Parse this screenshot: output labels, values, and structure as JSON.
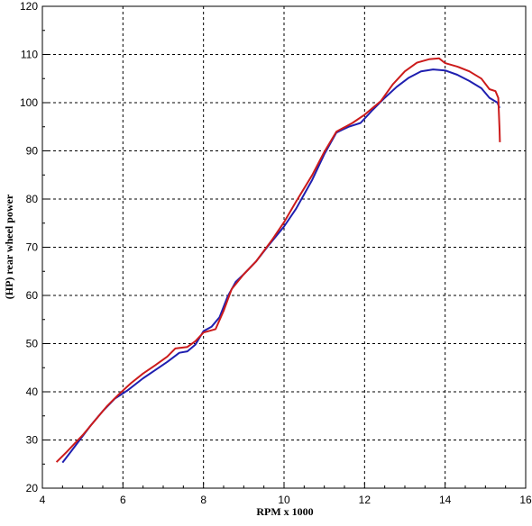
{
  "chart_data": {
    "type": "line",
    "title": "",
    "xlabel": "RPM x 1000",
    "ylabel": "(HP) rear wheel power",
    "xlim": [
      4,
      16
    ],
    "ylim": [
      20,
      120
    ],
    "x_ticks": [
      4,
      6,
      8,
      10,
      12,
      14,
      16
    ],
    "y_ticks": [
      20,
      30,
      40,
      50,
      60,
      70,
      80,
      90,
      100,
      110,
      120
    ],
    "grid": true,
    "legend": "none",
    "series": [
      {
        "color": "#1f1fb0",
        "points": [
          [
            4.5,
            25.3
          ],
          [
            4.7,
            27.5
          ],
          [
            5.0,
            30.8
          ],
          [
            5.2,
            33.0
          ],
          [
            5.5,
            36.0
          ],
          [
            5.8,
            38.6
          ],
          [
            6.1,
            40.2
          ],
          [
            6.5,
            42.8
          ],
          [
            6.8,
            44.5
          ],
          [
            7.1,
            46.2
          ],
          [
            7.4,
            48.1
          ],
          [
            7.6,
            48.4
          ],
          [
            7.8,
            49.8
          ],
          [
            8.0,
            52.6
          ],
          [
            8.2,
            53.5
          ],
          [
            8.4,
            55.5
          ],
          [
            8.6,
            59.8
          ],
          [
            8.8,
            62.8
          ],
          [
            9.0,
            64.4
          ],
          [
            9.3,
            67.0
          ],
          [
            9.6,
            70.2
          ],
          [
            10.0,
            74.3
          ],
          [
            10.3,
            78.0
          ],
          [
            10.7,
            84.0
          ],
          [
            11.0,
            89.3
          ],
          [
            11.3,
            93.8
          ],
          [
            11.6,
            95.0
          ],
          [
            11.9,
            95.8
          ],
          [
            12.2,
            98.5
          ],
          [
            12.5,
            101.0
          ],
          [
            12.8,
            103.3
          ],
          [
            13.1,
            105.2
          ],
          [
            13.4,
            106.5
          ],
          [
            13.7,
            106.9
          ],
          [
            14.0,
            106.7
          ],
          [
            14.3,
            105.8
          ],
          [
            14.6,
            104.5
          ],
          [
            14.9,
            103.0
          ],
          [
            15.1,
            101.0
          ],
          [
            15.3,
            100.0
          ],
          [
            15.35,
            98.9
          ]
        ]
      },
      {
        "color": "#cc1b1b",
        "points": [
          [
            4.35,
            25.4
          ],
          [
            4.6,
            27.5
          ],
          [
            5.0,
            31.0
          ],
          [
            5.3,
            34.0
          ],
          [
            5.6,
            37.0
          ],
          [
            5.9,
            39.5
          ],
          [
            6.2,
            41.8
          ],
          [
            6.5,
            43.8
          ],
          [
            6.8,
            45.5
          ],
          [
            7.1,
            47.3
          ],
          [
            7.3,
            49.0
          ],
          [
            7.6,
            49.3
          ],
          [
            7.8,
            50.5
          ],
          [
            8.0,
            52.3
          ],
          [
            8.3,
            53.0
          ],
          [
            8.5,
            56.8
          ],
          [
            8.7,
            61.3
          ],
          [
            9.0,
            64.4
          ],
          [
            9.3,
            67.0
          ],
          [
            9.7,
            71.5
          ],
          [
            10.0,
            75.2
          ],
          [
            10.3,
            79.5
          ],
          [
            10.7,
            85.0
          ],
          [
            11.0,
            89.8
          ],
          [
            11.3,
            94.0
          ],
          [
            11.7,
            95.8
          ],
          [
            12.0,
            97.5
          ],
          [
            12.4,
            100.3
          ],
          [
            12.7,
            103.8
          ],
          [
            13.0,
            106.5
          ],
          [
            13.3,
            108.3
          ],
          [
            13.6,
            109.0
          ],
          [
            13.85,
            109.2
          ],
          [
            14.0,
            108.2
          ],
          [
            14.3,
            107.5
          ],
          [
            14.6,
            106.5
          ],
          [
            14.9,
            105.0
          ],
          [
            15.1,
            102.8
          ],
          [
            15.25,
            102.4
          ],
          [
            15.32,
            101.0
          ],
          [
            15.35,
            94.5
          ],
          [
            15.36,
            91.8
          ]
        ]
      }
    ]
  }
}
